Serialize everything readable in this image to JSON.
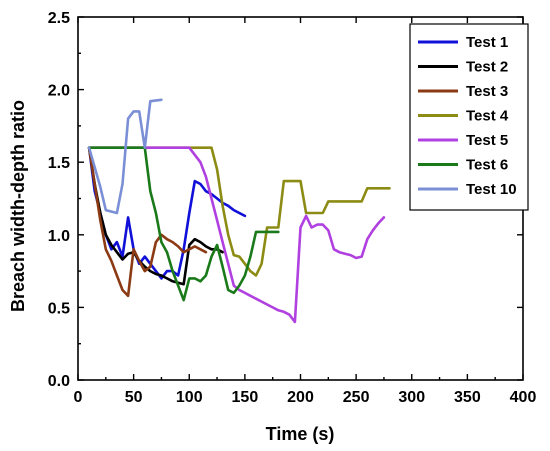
{
  "chart_data": {
    "type": "line",
    "title": "",
    "xlabel": "Time (s)",
    "ylabel": "Breach width-depth ratio",
    "xlim": [
      0,
      400
    ],
    "ylim": [
      0,
      2.5
    ],
    "xticks": [
      0,
      50,
      100,
      150,
      200,
      250,
      300,
      350,
      400
    ],
    "yticks": [
      0.0,
      0.5,
      1.0,
      1.5,
      2.0,
      2.5
    ],
    "xtick_labels": [
      "0",
      "50",
      "100",
      "150",
      "200",
      "250",
      "300",
      "350",
      "400"
    ],
    "ytick_labels": [
      "0.0",
      "0.5",
      "1.0",
      "1.5",
      "2.0",
      "2.5"
    ],
    "grid": false,
    "legend_position": "top-right",
    "series": [
      {
        "name": "Test 1",
        "color": "#1010d8",
        "points": [
          [
            10,
            1.6
          ],
          [
            15,
            1.3
          ],
          [
            20,
            1.15
          ],
          [
            25,
            1.0
          ],
          [
            30,
            0.9
          ],
          [
            35,
            0.95
          ],
          [
            40,
            0.85
          ],
          [
            45,
            1.12
          ],
          [
            50,
            0.9
          ],
          [
            55,
            0.8
          ],
          [
            60,
            0.85
          ],
          [
            65,
            0.8
          ],
          [
            70,
            0.75
          ],
          [
            75,
            0.7
          ],
          [
            80,
            0.75
          ],
          [
            85,
            0.75
          ],
          [
            90,
            0.72
          ],
          [
            95,
            0.9
          ],
          [
            100,
            1.15
          ],
          [
            105,
            1.37
          ],
          [
            110,
            1.35
          ],
          [
            115,
            1.3
          ],
          [
            120,
            1.28
          ],
          [
            125,
            1.25
          ],
          [
            130,
            1.22
          ],
          [
            135,
            1.2
          ],
          [
            140,
            1.17
          ],
          [
            145,
            1.15
          ],
          [
            150,
            1.13
          ]
        ]
      },
      {
        "name": "Test 2",
        "color": "#000000",
        "points": [
          [
            10,
            1.6
          ],
          [
            15,
            1.35
          ],
          [
            20,
            1.15
          ],
          [
            25,
            1.0
          ],
          [
            30,
            0.93
          ],
          [
            35,
            0.88
          ],
          [
            40,
            0.83
          ],
          [
            45,
            0.87
          ],
          [
            50,
            0.88
          ],
          [
            55,
            0.82
          ],
          [
            60,
            0.78
          ],
          [
            65,
            0.75
          ],
          [
            70,
            0.73
          ],
          [
            75,
            0.72
          ],
          [
            80,
            0.7
          ],
          [
            85,
            0.68
          ],
          [
            90,
            0.67
          ],
          [
            95,
            0.66
          ],
          [
            100,
            0.93
          ],
          [
            105,
            0.97
          ],
          [
            110,
            0.95
          ],
          [
            115,
            0.92
          ],
          [
            120,
            0.9
          ],
          [
            125,
            0.9
          ],
          [
            130,
            0.88
          ]
        ]
      },
      {
        "name": "Test 3",
        "color": "#8b3a14",
        "points": [
          [
            10,
            1.6
          ],
          [
            15,
            1.35
          ],
          [
            20,
            1.1
          ],
          [
            25,
            0.9
          ],
          [
            30,
            0.82
          ],
          [
            35,
            0.72
          ],
          [
            40,
            0.62
          ],
          [
            45,
            0.58
          ],
          [
            50,
            0.9
          ],
          [
            55,
            0.82
          ],
          [
            60,
            0.75
          ],
          [
            65,
            0.78
          ],
          [
            70,
            0.95
          ],
          [
            75,
            1.0
          ],
          [
            80,
            0.97
          ],
          [
            85,
            0.95
          ],
          [
            90,
            0.92
          ],
          [
            95,
            0.88
          ],
          [
            100,
            0.9
          ],
          [
            105,
            0.92
          ],
          [
            110,
            0.9
          ],
          [
            115,
            0.88
          ]
        ]
      },
      {
        "name": "Test 4",
        "color": "#8c8c14",
        "points": [
          [
            10,
            1.6
          ],
          [
            120,
            1.6
          ],
          [
            125,
            1.45
          ],
          [
            130,
            1.2
          ],
          [
            135,
            1.0
          ],
          [
            140,
            0.86
          ],
          [
            145,
            0.85
          ],
          [
            150,
            0.8
          ],
          [
            155,
            0.75
          ],
          [
            160,
            0.72
          ],
          [
            165,
            0.8
          ],
          [
            170,
            1.05
          ],
          [
            175,
            1.05
          ],
          [
            180,
            1.05
          ],
          [
            185,
            1.37
          ],
          [
            200,
            1.37
          ],
          [
            205,
            1.15
          ],
          [
            220,
            1.15
          ],
          [
            225,
            1.23
          ],
          [
            230,
            1.23
          ],
          [
            235,
            1.23
          ],
          [
            240,
            1.23
          ],
          [
            250,
            1.23
          ],
          [
            255,
            1.23
          ],
          [
            260,
            1.32
          ],
          [
            270,
            1.32
          ],
          [
            280,
            1.32
          ]
        ]
      },
      {
        "name": "Test 5",
        "color": "#b040e0",
        "points": [
          [
            10,
            1.6
          ],
          [
            100,
            1.6
          ],
          [
            110,
            1.5
          ],
          [
            115,
            1.4
          ],
          [
            120,
            1.25
          ],
          [
            125,
            1.1
          ],
          [
            130,
            0.95
          ],
          [
            135,
            0.8
          ],
          [
            140,
            0.65
          ],
          [
            145,
            0.62
          ],
          [
            150,
            0.6
          ],
          [
            155,
            0.58
          ],
          [
            160,
            0.56
          ],
          [
            165,
            0.54
          ],
          [
            170,
            0.52
          ],
          [
            175,
            0.5
          ],
          [
            180,
            0.48
          ],
          [
            185,
            0.47
          ],
          [
            190,
            0.45
          ],
          [
            195,
            0.4
          ],
          [
            200,
            1.05
          ],
          [
            205,
            1.13
          ],
          [
            210,
            1.05
          ],
          [
            215,
            1.07
          ],
          [
            220,
            1.07
          ],
          [
            225,
            1.03
          ],
          [
            230,
            0.9
          ],
          [
            235,
            0.88
          ],
          [
            240,
            0.87
          ],
          [
            245,
            0.86
          ],
          [
            250,
            0.84
          ],
          [
            255,
            0.85
          ],
          [
            260,
            0.97
          ],
          [
            265,
            1.03
          ],
          [
            270,
            1.08
          ],
          [
            275,
            1.12
          ]
        ]
      },
      {
        "name": "Test 6",
        "color": "#1a7a1a",
        "points": [
          [
            10,
            1.6
          ],
          [
            60,
            1.6
          ],
          [
            65,
            1.3
          ],
          [
            70,
            1.15
          ],
          [
            75,
            0.95
          ],
          [
            80,
            0.88
          ],
          [
            85,
            0.75
          ],
          [
            90,
            0.65
          ],
          [
            95,
            0.55
          ],
          [
            100,
            0.7
          ],
          [
            105,
            0.7
          ],
          [
            110,
            0.68
          ],
          [
            115,
            0.72
          ],
          [
            120,
            0.85
          ],
          [
            125,
            0.93
          ],
          [
            130,
            0.78
          ],
          [
            135,
            0.62
          ],
          [
            140,
            0.6
          ],
          [
            145,
            0.65
          ],
          [
            150,
            0.72
          ],
          [
            155,
            0.85
          ],
          [
            160,
            1.02
          ],
          [
            170,
            1.02
          ],
          [
            180,
            1.02
          ]
        ]
      },
      {
        "name": "Test 10",
        "color": "#7b8fd6",
        "points": [
          [
            10,
            1.6
          ],
          [
            20,
            1.33
          ],
          [
            25,
            1.17
          ],
          [
            35,
            1.15
          ],
          [
            40,
            1.35
          ],
          [
            45,
            1.8
          ],
          [
            50,
            1.85
          ],
          [
            55,
            1.85
          ],
          [
            60,
            1.6
          ],
          [
            65,
            1.92
          ],
          [
            75,
            1.93
          ]
        ]
      }
    ]
  }
}
